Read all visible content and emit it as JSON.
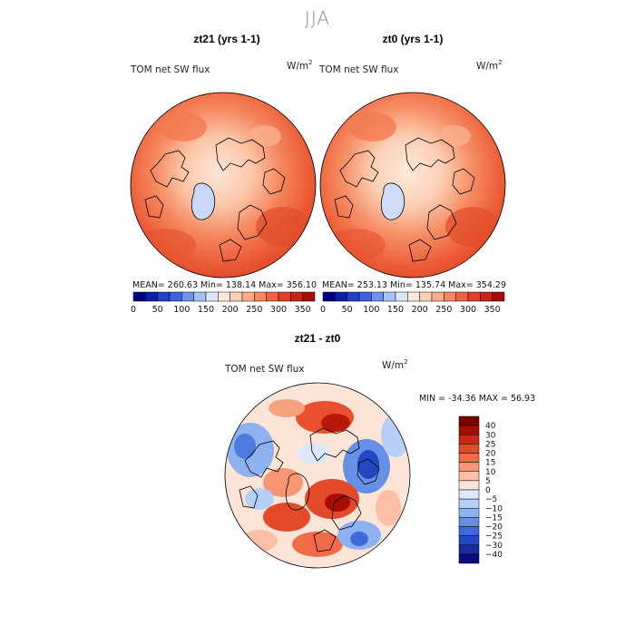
{
  "figure": {
    "season": "JJA"
  },
  "panels": [
    {
      "title": "zt21 (yrs 1-1)",
      "variable": "TOM net SW flux",
      "unit_base": "W/m",
      "unit_exp": "2",
      "stats": "MEAN= 260.63   Min= 138.14   Max= 356.10"
    },
    {
      "title": "zt0 (yrs 1-1)",
      "variable": "TOM net SW flux",
      "unit_base": "W/m",
      "unit_exp": "2",
      "stats": "MEAN= 253.13   Min= 135.74   Max= 354.29"
    },
    {
      "title": "zt21 - zt0",
      "variable": "TOM net SW flux",
      "unit_base": "W/m",
      "unit_exp": "2",
      "stats": "MIN = -34.36  MAX =  56.93"
    }
  ],
  "chart_data": [
    {
      "type": "heatmap",
      "projection": "north polar stereographic",
      "title": "zt21 (yrs 1-1)",
      "variable": "TOM net SW flux",
      "units": "W/m2",
      "mean": 260.63,
      "min": 138.14,
      "max": 356.1,
      "colorbar": {
        "levels": [
          0,
          25,
          50,
          75,
          100,
          125,
          150,
          175,
          200,
          225,
          250,
          275,
          300,
          325,
          350,
          375
        ],
        "tick_labels": [
          "0",
          "50",
          "100",
          "150",
          "200",
          "250",
          "300",
          "350"
        ],
        "colors": [
          "#000080",
          "#0b1fa8",
          "#1f3fcc",
          "#3c62e0",
          "#6f93ec",
          "#a6c1f5",
          "#dbe6fa",
          "#ffe9dc",
          "#fdd0b6",
          "#fbac88",
          "#f7875f",
          "#f0623f",
          "#e0402a",
          "#c82613",
          "#a30f05"
        ]
      }
    },
    {
      "type": "heatmap",
      "projection": "north polar stereographic",
      "title": "zt0 (yrs 1-1)",
      "variable": "TOM net SW flux",
      "units": "W/m2",
      "mean": 253.13,
      "min": 135.74,
      "max": 354.29,
      "colorbar": {
        "levels": [
          0,
          25,
          50,
          75,
          100,
          125,
          150,
          175,
          200,
          225,
          250,
          275,
          300,
          325,
          350,
          375
        ],
        "tick_labels": [
          "0",
          "50",
          "100",
          "150",
          "200",
          "250",
          "300",
          "350"
        ],
        "colors": [
          "#000080",
          "#0b1fa8",
          "#1f3fcc",
          "#3c62e0",
          "#6f93ec",
          "#a6c1f5",
          "#dbe6fa",
          "#ffe9dc",
          "#fdd0b6",
          "#fbac88",
          "#f7875f",
          "#f0623f",
          "#e0402a",
          "#c82613",
          "#a30f05"
        ]
      }
    },
    {
      "type": "heatmap",
      "projection": "north polar stereographic",
      "title": "zt21 - zt0",
      "variable": "TOM net SW flux",
      "units": "W/m2",
      "min": -34.36,
      "max": 56.93,
      "colorbar": {
        "tick_labels": [
          "40",
          "30",
          "25",
          "20",
          "15",
          "10",
          "5",
          "0",
          "-5",
          "-10",
          "-15",
          "-20",
          "-25",
          "-30",
          "-40"
        ],
        "colors": [
          "#7a0000",
          "#a80d05",
          "#c92a14",
          "#e34a2a",
          "#f06b47",
          "#f89575",
          "#fdbfa5",
          "#fee5d8",
          "#dde8fb",
          "#b7cff6",
          "#8eb1f0",
          "#6690e6",
          "#3f6bd8",
          "#2147c2",
          "#1a2ba0",
          "#0a0a80"
        ]
      }
    }
  ]
}
